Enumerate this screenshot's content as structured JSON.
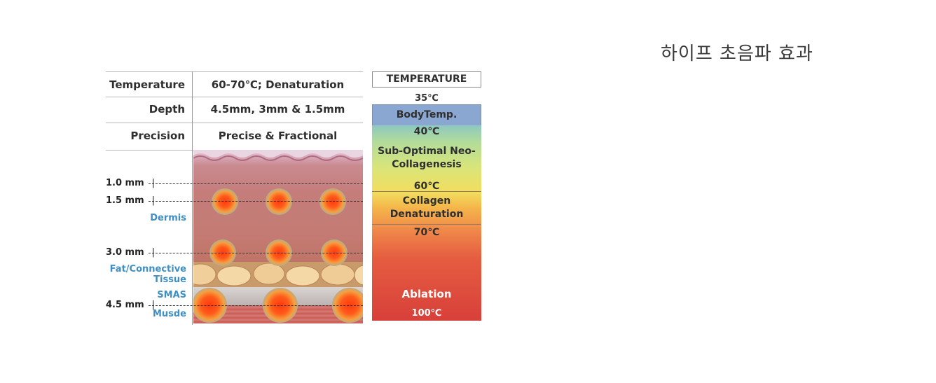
{
  "page_title": "하이프 초음파 효과",
  "properties": [
    {
      "label": "Temperature",
      "value": "60-70℃; Denaturation"
    },
    {
      "label": "Depth",
      "value": "4.5mm, 3mm & 1.5mm"
    },
    {
      "label": "Precision",
      "value": "Precise & Fractional"
    }
  ],
  "depth_markers": [
    "1.0 mm",
    "1.5 mm",
    "3.0 mm",
    "4.5 mm"
  ],
  "layers": [
    "Dermis",
    "Fat/Connective Tissue",
    "SMAS",
    "Musde"
  ],
  "temperature": {
    "title": "TEMPERATURE",
    "t35": "35℃",
    "body": "BodyTemp.",
    "t40": "40℃",
    "sub_optimal": "Sub-Optimal Neo-Collagenesis",
    "t60": "60℃",
    "collagen": "Collagen Denaturation",
    "t70": "70℃",
    "ablation": "Ablation",
    "t100": "100℃"
  },
  "colors": {
    "layer_label": "#3f8fc4",
    "body_temp": "#8aa7d2",
    "ablation": "#d8403a"
  }
}
